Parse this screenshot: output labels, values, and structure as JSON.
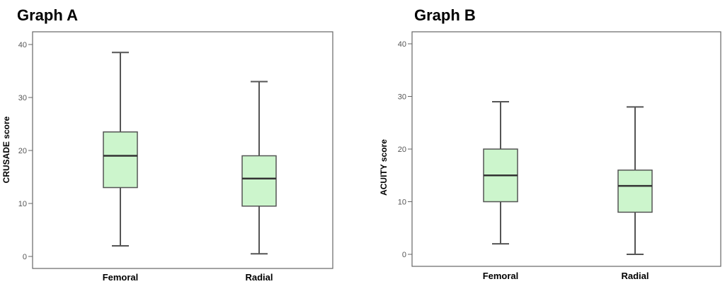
{
  "chart_data": [
    {
      "type": "box",
      "title": "Graph A",
      "ylabel": "CRUSADE score",
      "xlabel": "",
      "ylim": [
        0,
        40
      ],
      "yticks": [
        0,
        10,
        20,
        30,
        40
      ],
      "categories": [
        "Femoral",
        "Radial"
      ],
      "box_color": "#ccf5cc",
      "boxes": [
        {
          "min": 2,
          "q1": 13,
          "median": 19,
          "q3": 23.5,
          "max": 38.5
        },
        {
          "min": 0.5,
          "q1": 9.5,
          "median": 14.7,
          "q3": 19,
          "max": 33
        }
      ]
    },
    {
      "type": "box",
      "title": "Graph B",
      "ylabel": "ACUITY score",
      "xlabel": "",
      "ylim": [
        0,
        40
      ],
      "yticks": [
        0,
        10,
        20,
        30,
        40
      ],
      "categories": [
        "Femoral",
        "Radial"
      ],
      "box_color": "#ccf5cc",
      "boxes": [
        {
          "min": 2,
          "q1": 10,
          "median": 15,
          "q3": 20,
          "max": 29
        },
        {
          "min": 0,
          "q1": 8,
          "median": 13,
          "q3": 16,
          "max": 28
        }
      ]
    }
  ]
}
